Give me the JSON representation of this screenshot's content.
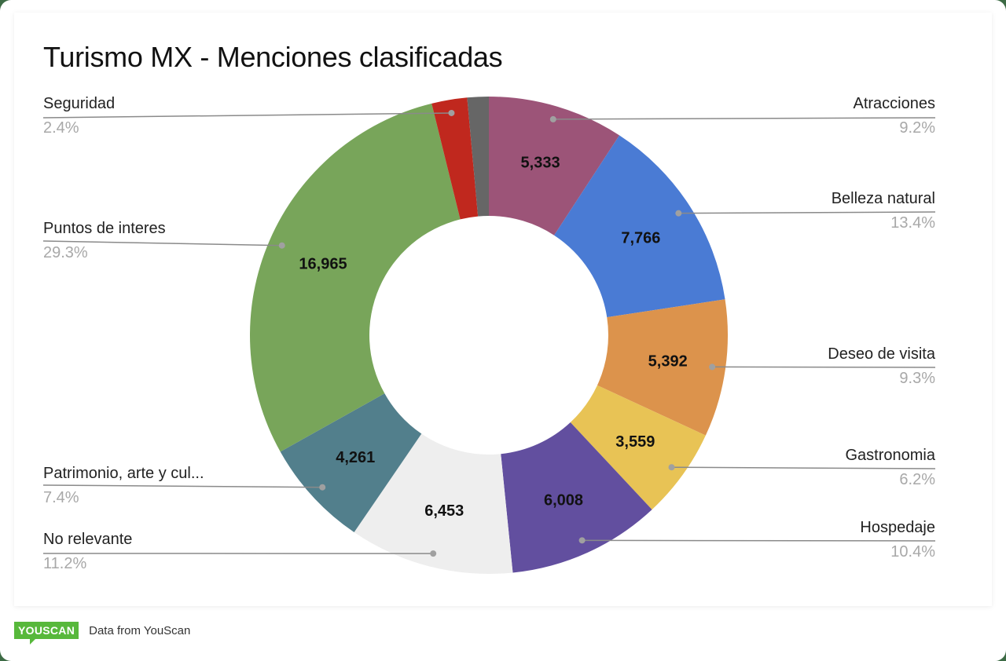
{
  "chart_data": {
    "type": "pie",
    "variant": "donut",
    "title": "Turismo MX - Menciones clasificadas",
    "slices": [
      {
        "label": "Atracciones",
        "value": 5333,
        "value_label": "5,333",
        "percent": "9.2%",
        "color": "#9c5478"
      },
      {
        "label": "Belleza natural",
        "value": 7766,
        "value_label": "7,766",
        "percent": "13.4%",
        "color": "#4a7bd4"
      },
      {
        "label": "Deseo de visita",
        "value": 5392,
        "value_label": "5,392",
        "percent": "9.3%",
        "color": "#dc934c"
      },
      {
        "label": "Gastronomia",
        "value": 3559,
        "value_label": "3,559",
        "percent": "6.2%",
        "color": "#e8c355"
      },
      {
        "label": "Hospedaje",
        "value": 6008,
        "value_label": "6,008",
        "percent": "10.4%",
        "color": "#624f9f"
      },
      {
        "label": "No relevante",
        "value": 6453,
        "value_label": "6,453",
        "percent": "11.2%",
        "color": "#eeeeee"
      },
      {
        "label": "Patrimonio, arte y cul...",
        "value": 4261,
        "value_label": "4,261",
        "percent": "7.4%",
        "color": "#527f8c"
      },
      {
        "label": "Puntos de interes",
        "value": 16965,
        "value_label": "16,965",
        "percent": "29.3%",
        "color": "#78a55a"
      },
      {
        "label": "Seguridad",
        "value": 1391,
        "value_label": "",
        "percent": "2.4%",
        "color": "#c0281e"
      },
      {
        "label": "",
        "value": 840,
        "value_label": "",
        "percent": "",
        "color": "#666666"
      }
    ],
    "legend_position": "labels with leader lines"
  },
  "title": "Turismo MX - Menciones clasificadas",
  "labels": {
    "atracciones": {
      "name": "Atracciones",
      "pct": "9.2%"
    },
    "belleza": {
      "name": "Belleza natural",
      "pct": "13.4%"
    },
    "deseo": {
      "name": "Deseo de visita",
      "pct": "9.3%"
    },
    "gastronomia": {
      "name": "Gastronomia",
      "pct": "6.2%"
    },
    "hospedaje": {
      "name": "Hospedaje",
      "pct": "10.4%"
    },
    "norelevante": {
      "name": "No relevante",
      "pct": "11.2%"
    },
    "patrimonio": {
      "name": "Patrimonio, arte y cul...",
      "pct": "7.4%"
    },
    "puntos": {
      "name": "Puntos de interes",
      "pct": "29.3%"
    },
    "seguridad": {
      "name": "Seguridad",
      "pct": "2.4%"
    }
  },
  "footer": {
    "logo": "YOUSCAN",
    "source": "Data from YouScan"
  }
}
